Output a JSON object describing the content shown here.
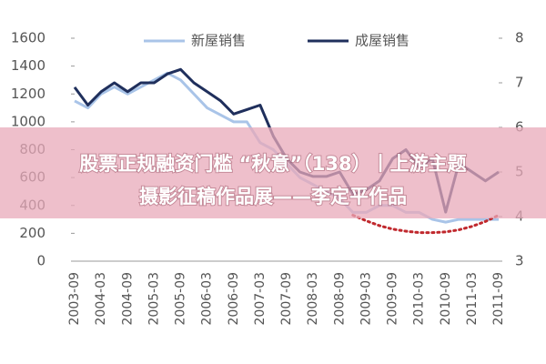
{
  "chart_data": {
    "type": "line",
    "categories": [
      "2003-09",
      null,
      "2004-03",
      null,
      "2004-09",
      null,
      "2005-03",
      null,
      "2005-09",
      null,
      "2006-03",
      null,
      "2006-09",
      null,
      "2007-03",
      null,
      "2007-09",
      null,
      "2008-03",
      null,
      "2008-09",
      null,
      "2009-03",
      null,
      "2009-09",
      null,
      "2010-03",
      null,
      "2010-09",
      null,
      "2011-03",
      null,
      "2011-09"
    ],
    "series": [
      {
        "name": "新屋销售",
        "color": "#a9c4e8",
        "values": [
          1150,
          1100,
          1200,
          1250,
          1200,
          1250,
          1300,
          1350,
          1300,
          1200,
          1100,
          1050,
          1000,
          1000,
          850,
          800,
          700,
          600,
          550,
          500,
          450,
          350,
          350,
          400,
          400,
          350,
          350,
          300,
          280,
          300,
          300,
          300,
          300
        ]
      },
      {
        "name": "成屋销售",
        "color": "#1f2f5c",
        "axis": "y2",
        "values": [
          6.9,
          6.5,
          6.8,
          7.0,
          6.8,
          7.0,
          7.0,
          7.2,
          7.3,
          7.0,
          6.8,
          6.6,
          6.3,
          6.4,
          6.5,
          5.8,
          5.3,
          5.0,
          4.9,
          4.9,
          5.0,
          4.5,
          4.6,
          4.8,
          5.3,
          5.5,
          5.1,
          5.3,
          4.1,
          5.2,
          5.0,
          4.8,
          5.0
        ]
      },
      {
        "color": "#c0282d",
        "dashed": true,
        "values": [
          null,
          null,
          null,
          null,
          null,
          null,
          null,
          null,
          null,
          null,
          null,
          null,
          null,
          null,
          null,
          null,
          null,
          null,
          null,
          null,
          null,
          330,
          290,
          255,
          230,
          215,
          205,
          205,
          210,
          225,
          250,
          285,
          330
        ]
      }
    ],
    "ylim": [
      0,
      1600
    ],
    "yticks": [
      0,
      200,
      400,
      600,
      800,
      1000,
      1200,
      1400,
      1600
    ],
    "y2lim": [
      3,
      8
    ],
    "y2ticks": [
      3,
      4,
      5,
      6,
      7,
      8
    ]
  },
  "banner": {
    "line1": "股票正规融资门槛 “秋意”（138）丨上游主题",
    "line2": "摄影征稿作品展——李定平作品"
  }
}
